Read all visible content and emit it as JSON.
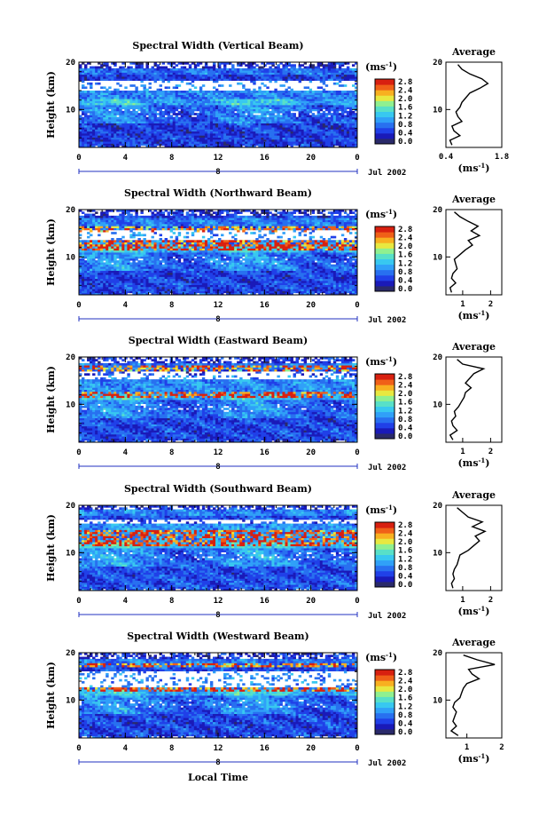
{
  "figure": {
    "xlabel": "Local Time",
    "date_label": "Jul 2002",
    "day_label": "8",
    "colorbar_unit": "(ms",
    "colorbar_unit_sup": "-1",
    "colorbar_unit_close": ")",
    "colorbar_ticks": [
      "0.0",
      "0.4",
      "0.8",
      "1.2",
      "1.6",
      "2.0",
      "2.4",
      "2.8"
    ],
    "colorbar_range": [
      0.0,
      2.8
    ],
    "colorscale": [
      "#2a2a6a",
      "#1a1ab8",
      "#2040e8",
      "#2870f0",
      "#30a0f8",
      "#38c8f0",
      "#58e0c8",
      "#90f090",
      "#e8e840",
      "#f8b020",
      "#f06018",
      "#d82010"
    ],
    "average_title": "Average",
    "average_xlabel": "(ms",
    "average_xlabel_sup": "-1",
    "average_xlabel_close": ")"
  },
  "chart_data": [
    {
      "type": "heatmap",
      "title": "Spectral Width (Vertical Beam)",
      "ylabel": "Height (km)",
      "xlim": [
        0,
        24
      ],
      "ylim": [
        2,
        20
      ],
      "x_ticks": [
        "0",
        "4",
        "8",
        "12",
        "16",
        "20",
        "0"
      ],
      "y_ticks": [
        "20",
        "10"
      ],
      "profile": {
        "xlim": [
          0.4,
          1.8
        ],
        "x_ticks": [
          "0.4",
          "1.8"
        ],
        "height": [
          2.5,
          3.5,
          4.5,
          5.5,
          6.5,
          7.5,
          8.5,
          9.5,
          10.5,
          11.5,
          12.5,
          13.5,
          14.5,
          15.5,
          16.5,
          17.5,
          18.5,
          19.5
        ],
        "value": [
          0.55,
          0.5,
          0.75,
          0.6,
          0.55,
          0.8,
          0.7,
          0.65,
          0.75,
          0.8,
          0.9,
          1.0,
          1.25,
          1.45,
          1.3,
          1.0,
          0.8,
          0.7
        ]
      }
    },
    {
      "type": "heatmap",
      "title": "Spectral Width (Northward Beam)",
      "ylabel": "Height (km)",
      "xlim": [
        0,
        24
      ],
      "ylim": [
        2,
        20
      ],
      "x_ticks": [
        "0",
        "4",
        "8",
        "12",
        "16",
        "20",
        "0"
      ],
      "y_ticks": [
        "20",
        "10"
      ],
      "profile": {
        "xlim": [
          0.4,
          2.4
        ],
        "x_ticks": [
          "1",
          "2"
        ],
        "height": [
          2.5,
          3.5,
          4.5,
          5.5,
          6.5,
          7.5,
          8.5,
          9.5,
          10.5,
          11.5,
          12.5,
          13.5,
          14.5,
          15.5,
          16.5,
          17.5,
          18.5,
          19.5
        ],
        "value": [
          0.6,
          0.55,
          0.75,
          0.6,
          0.65,
          0.8,
          0.75,
          0.7,
          0.9,
          1.1,
          1.35,
          1.2,
          1.6,
          1.3,
          1.55,
          1.2,
          0.9,
          0.7
        ]
      }
    },
    {
      "type": "heatmap",
      "title": "Spectral Width (Eastward Beam)",
      "ylabel": "Height (km)",
      "xlim": [
        0,
        24
      ],
      "ylim": [
        2,
        20
      ],
      "x_ticks": [
        "0",
        "4",
        "8",
        "12",
        "16",
        "20",
        "0"
      ],
      "y_ticks": [
        "20",
        "10"
      ],
      "profile": {
        "xlim": [
          0.4,
          2.4
        ],
        "x_ticks": [
          "1",
          "2"
        ],
        "height": [
          2.5,
          3.5,
          4.5,
          5.5,
          6.5,
          7.5,
          8.5,
          9.5,
          10.5,
          11.5,
          12.5,
          13.5,
          14.5,
          15.5,
          16.5,
          17.5,
          18.5,
          19.5
        ],
        "value": [
          0.65,
          0.55,
          0.8,
          0.65,
          0.6,
          0.75,
          0.7,
          0.85,
          0.95,
          1.05,
          1.1,
          1.3,
          1.1,
          1.25,
          1.4,
          1.75,
          1.0,
          0.8
        ]
      }
    },
    {
      "type": "heatmap",
      "title": "Spectral Width (Southward Beam)",
      "ylabel": "Height (km)",
      "xlim": [
        0,
        24
      ],
      "ylim": [
        2,
        20
      ],
      "x_ticks": [
        "0",
        "4",
        "8",
        "12",
        "16",
        "20",
        "0"
      ],
      "y_ticks": [
        "20",
        "10"
      ],
      "profile": {
        "xlim": [
          0.4,
          2.4
        ],
        "x_ticks": [
          "1",
          "2"
        ],
        "height": [
          2.5,
          3.5,
          4.5,
          5.5,
          6.5,
          7.5,
          8.5,
          9.5,
          10.5,
          11.5,
          12.5,
          13.5,
          14.5,
          15.5,
          16.5,
          17.5,
          18.5,
          19.5
        ],
        "value": [
          0.65,
          0.6,
          0.7,
          0.65,
          0.7,
          0.8,
          0.85,
          0.9,
          1.2,
          1.4,
          1.6,
          1.45,
          1.8,
          1.35,
          1.7,
          1.2,
          1.0,
          0.8
        ]
      }
    },
    {
      "type": "heatmap",
      "title": "Spectral Width (Westward Beam)",
      "ylabel": "Height (km)",
      "xlim": [
        0,
        24
      ],
      "ylim": [
        2,
        20
      ],
      "x_ticks": [
        "0",
        "4",
        "8",
        "12",
        "16",
        "20",
        "0"
      ],
      "y_ticks": [
        "20",
        "10"
      ],
      "profile": {
        "xlim": [
          0.4,
          2.0
        ],
        "x_ticks": [
          "1",
          "2"
        ],
        "height": [
          2.5,
          3.5,
          4.5,
          5.5,
          6.5,
          7.5,
          8.5,
          9.5,
          10.5,
          11.5,
          12.5,
          13.5,
          14.5,
          15.5,
          16.5,
          17.5,
          18.5,
          19.5
        ],
        "value": [
          0.75,
          0.55,
          0.7,
          0.6,
          0.65,
          0.7,
          0.6,
          0.65,
          0.8,
          0.85,
          0.9,
          1.0,
          1.35,
          1.15,
          1.05,
          1.8,
          1.3,
          0.9
        ]
      }
    }
  ]
}
